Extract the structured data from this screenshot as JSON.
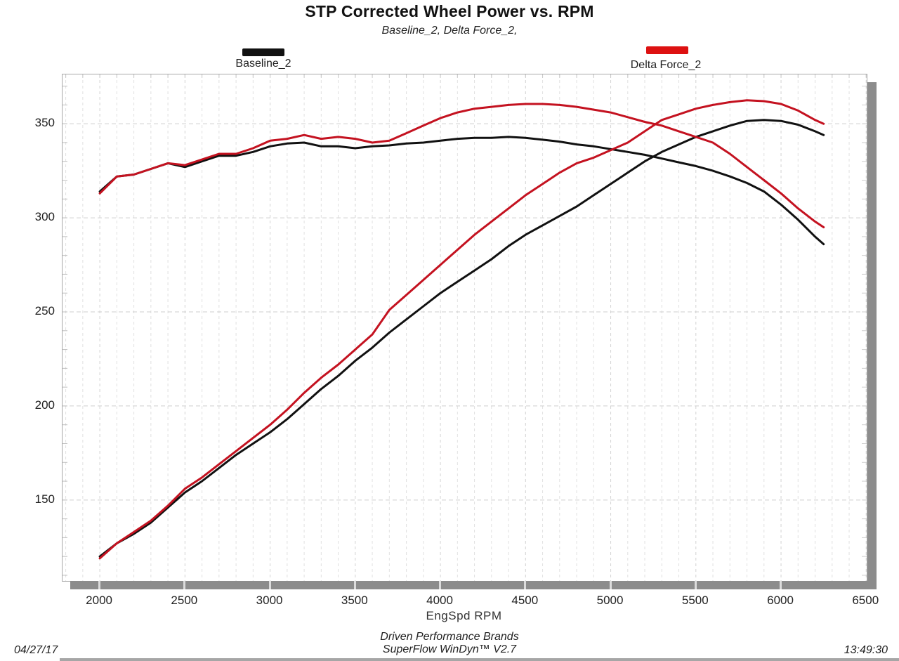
{
  "header": {
    "title": "STP Corrected Wheel Power vs. RPM",
    "subtitle": "Baseline_2, Delta Force_2,"
  },
  "legend": [
    {
      "label": "Baseline_2",
      "color": "#111111"
    },
    {
      "label": "Delta Force_2",
      "color": "#dd1111"
    }
  ],
  "footer": {
    "date": "04/27/17",
    "time": "13:49:30",
    "brand_line1": "Driven Performance Brands",
    "brand_line2": "SuperFlow WinDyn™ V2.7"
  },
  "chart_data": {
    "type": "line",
    "title": "STP Corrected Wheel Power vs. RPM",
    "xlabel": "EngSpd RPM",
    "ylabel": "",
    "xlim": [
      1781,
      6503
    ],
    "ylim": [
      107,
      376.2
    ],
    "x_ticks": [
      2000,
      2500,
      3000,
      3500,
      4000,
      4500,
      5000,
      5500,
      6000,
      6500
    ],
    "y_ticks": [
      150,
      200,
      250,
      300,
      350
    ],
    "grid": "dashed light-gray; vertical every 100 RPM, horizontal every 50 units",
    "legend_position": "above plot, swatch over label",
    "x_rpm": [
      2000,
      2100,
      2200,
      2300,
      2400,
      2500,
      2600,
      2700,
      2800,
      2900,
      3000,
      3100,
      3200,
      3300,
      3400,
      3500,
      3600,
      3700,
      3800,
      3900,
      4000,
      4100,
      4200,
      4300,
      4400,
      4500,
      4600,
      4700,
      4800,
      4900,
      5000,
      5100,
      5200,
      5300,
      5400,
      5500,
      5600,
      5700,
      5800,
      5900,
      6000,
      6100,
      6200,
      6250
    ],
    "series": [
      {
        "name": "Baseline_2 (torque)",
        "color": "#111111",
        "values": [
          314,
          322,
          323,
          326,
          329,
          327,
          330,
          333,
          333,
          335,
          338,
          339.5,
          340,
          338,
          338,
          337,
          338,
          338.5,
          339.5,
          340,
          341,
          342,
          342.5,
          342.5,
          343,
          342.5,
          341.5,
          340.5,
          339,
          338,
          336.5,
          335,
          333.5,
          331.5,
          329.5,
          327.5,
          325,
          322,
          318.5,
          314,
          307,
          299,
          290,
          286
        ]
      },
      {
        "name": "Baseline_2 (power)",
        "color": "#111111",
        "values": [
          120,
          127,
          132,
          138,
          146,
          154,
          160,
          167,
          174,
          180,
          186,
          193,
          201,
          209,
          216,
          224,
          231,
          239,
          246,
          253,
          260,
          266,
          272,
          278,
          285,
          291,
          296,
          301,
          306,
          312,
          318,
          324,
          330,
          335,
          339,
          343,
          346,
          349,
          351.5,
          352,
          351.5,
          349.5,
          346,
          344
        ]
      },
      {
        "name": "Delta Force_2 (torque)",
        "color": "#c41220",
        "values": [
          313,
          322,
          323,
          326,
          329,
          328,
          331,
          334,
          334,
          337,
          341,
          342,
          344,
          342,
          343,
          342,
          340,
          341,
          345,
          349,
          353,
          356,
          358,
          359,
          360,
          360.5,
          360.5,
          360,
          359,
          357.5,
          356,
          353.5,
          351,
          349,
          346,
          343,
          340,
          334,
          327,
          320,
          313,
          305,
          298,
          295
        ]
      },
      {
        "name": "Delta Force_2 (power)",
        "color": "#c41220",
        "values": [
          119,
          127,
          133,
          139,
          147,
          156,
          162,
          169,
          176,
          183,
          190,
          198,
          207,
          215,
          222,
          230,
          238,
          251,
          259,
          267,
          275,
          283,
          291,
          298,
          305,
          312,
          318,
          324,
          329,
          332,
          336,
          340,
          346,
          352,
          355,
          358,
          360,
          361.5,
          362.5,
          362,
          360.5,
          357,
          352,
          350
        ]
      }
    ]
  }
}
